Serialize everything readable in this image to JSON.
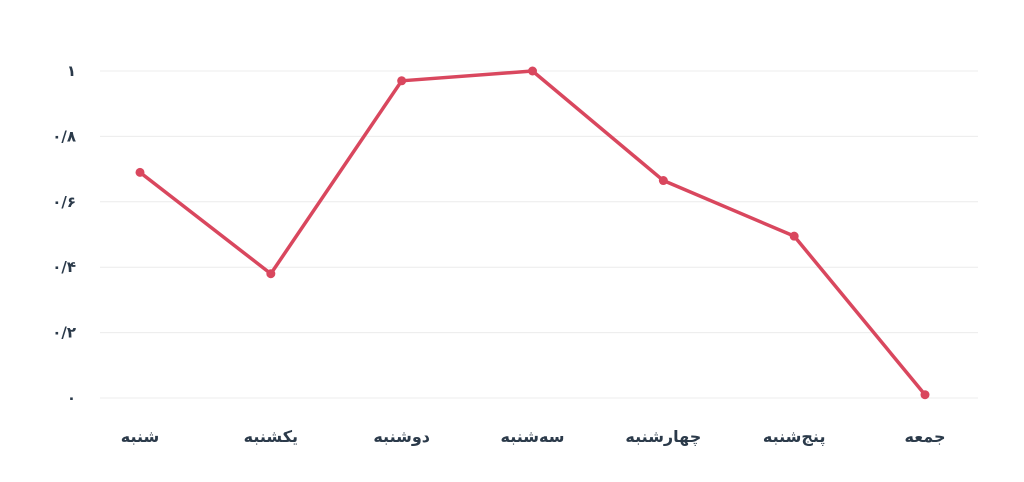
{
  "colors": {
    "series": "#d9475e",
    "grid": "#ececec",
    "text": "#2b3a4a"
  },
  "chart_data": {
    "type": "line",
    "title": "",
    "xlabel": "",
    "ylabel": "",
    "categories": [
      "شنبه",
      "یکشنبه",
      "دوشنبه",
      "سه‌شنبه",
      "چهارشنبه",
      "پنج‌شنبه",
      "جمعه"
    ],
    "series": [
      {
        "values": [
          0.69,
          0.38,
          0.97,
          1.0,
          0.665,
          0.495,
          0.01
        ]
      }
    ],
    "ylim": [
      0,
      1
    ],
    "y_ticks": [
      0,
      0.2,
      0.4,
      0.6,
      0.8,
      1
    ],
    "y_tick_labels": [
      "۰",
      "۰/۲",
      "۰/۴",
      "۰/۶",
      "۰/۸",
      "۱"
    ],
    "grid": true,
    "markers": true,
    "legend": "none"
  }
}
